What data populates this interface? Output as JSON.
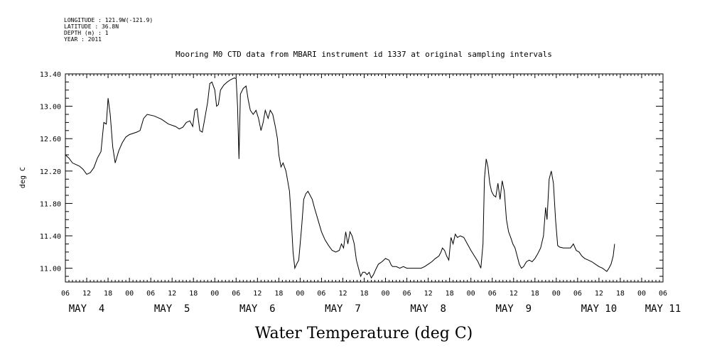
{
  "metadata": [
    "LONGITUDE : 121.9W(-121.9)",
    "LATITUDE : 36.8N",
    "DEPTH (m) : 1",
    "YEAR : 2011"
  ],
  "chart_data": {
    "type": "line",
    "title": "Mooring M0 CTD data from MBARI instrument id 1337 at original sampling intervals",
    "xlabel": "Water Temperature (deg C)",
    "ylabel": "deg C",
    "ylim": [
      10.83,
      13.4
    ],
    "xlim_hours": [
      0,
      168
    ],
    "x_start": "MAY 4 06:00",
    "x_unit": "hours since MAY 4 06:00",
    "yticks": [
      "11.00",
      "11.40",
      "11.80",
      "12.20",
      "12.60",
      "13.00",
      "13.40"
    ],
    "ytick_values": [
      11.0,
      11.4,
      11.8,
      12.2,
      12.6,
      13.0,
      13.4
    ],
    "xtick_labels": [
      "06",
      "12",
      "18",
      "00",
      "06",
      "12",
      "18",
      "00",
      "06",
      "12",
      "18",
      "00",
      "06",
      "12",
      "18",
      "00",
      "06",
      "12",
      "18",
      "00",
      "06",
      "12",
      "18",
      "00",
      "06",
      "12",
      "18",
      "00",
      "06"
    ],
    "day_labels": [
      {
        "label": "MAY  4",
        "hour": 6
      },
      {
        "label": "MAY  5",
        "hour": 30
      },
      {
        "label": "MAY  6",
        "hour": 54
      },
      {
        "label": "MAY  7",
        "hour": 78
      },
      {
        "label": "MAY  8",
        "hour": 102
      },
      {
        "label": "MAY  9",
        "hour": 126
      },
      {
        "label": "MAY 10",
        "hour": 150
      },
      {
        "label": "MAY 11",
        "hour": 168
      }
    ],
    "series": [
      {
        "name": "Water Temperature",
        "points": [
          [
            0,
            12.4
          ],
          [
            1,
            12.36
          ],
          [
            2,
            12.3
          ],
          [
            3,
            12.28
          ],
          [
            4,
            12.26
          ],
          [
            5,
            12.22
          ],
          [
            6,
            12.16
          ],
          [
            7,
            12.18
          ],
          [
            8,
            12.24
          ],
          [
            9,
            12.36
          ],
          [
            10,
            12.44
          ],
          [
            10.8,
            12.8
          ],
          [
            11.5,
            12.78
          ],
          [
            12,
            13.1
          ],
          [
            12.6,
            12.9
          ],
          [
            13.3,
            12.5
          ],
          [
            14,
            12.3
          ],
          [
            15,
            12.45
          ],
          [
            16,
            12.55
          ],
          [
            17,
            12.62
          ],
          [
            18,
            12.65
          ],
          [
            20,
            12.68
          ],
          [
            21,
            12.7
          ],
          [
            22,
            12.85
          ],
          [
            23,
            12.9
          ],
          [
            25,
            12.88
          ],
          [
            27,
            12.84
          ],
          [
            29,
            12.78
          ],
          [
            31,
            12.75
          ],
          [
            32,
            12.72
          ],
          [
            33,
            12.74
          ],
          [
            34,
            12.8
          ],
          [
            35,
            12.82
          ],
          [
            35.8,
            12.75
          ],
          [
            36.4,
            12.95
          ],
          [
            37,
            12.97
          ],
          [
            37.8,
            12.7
          ],
          [
            38.5,
            12.68
          ],
          [
            39,
            12.8
          ],
          [
            40,
            13.05
          ],
          [
            40.6,
            13.28
          ],
          [
            41.2,
            13.3
          ],
          [
            42,
            13.2
          ],
          [
            42.5,
            13.0
          ],
          [
            43,
            13.02
          ],
          [
            43.6,
            13.2
          ],
          [
            44.5,
            13.26
          ],
          [
            45.5,
            13.3
          ],
          [
            46.5,
            13.33
          ],
          [
            47.5,
            13.35
          ],
          [
            48,
            13.34
          ],
          [
            48.4,
            13.0
          ],
          [
            48.8,
            12.35
          ],
          [
            49.2,
            13.15
          ],
          [
            50,
            13.22
          ],
          [
            50.8,
            13.25
          ],
          [
            51.4,
            13.08
          ],
          [
            52,
            12.95
          ],
          [
            52.8,
            12.9
          ],
          [
            53.6,
            12.95
          ],
          [
            54.3,
            12.85
          ],
          [
            55,
            12.7
          ],
          [
            55.6,
            12.8
          ],
          [
            56.2,
            12.95
          ],
          [
            57,
            12.85
          ],
          [
            57.6,
            12.95
          ],
          [
            58.3,
            12.9
          ],
          [
            59,
            12.75
          ],
          [
            59.6,
            12.6
          ],
          [
            60,
            12.4
          ],
          [
            60.6,
            12.25
          ],
          [
            61.2,
            12.3
          ],
          [
            62,
            12.2
          ],
          [
            62.6,
            12.05
          ],
          [
            63,
            11.95
          ],
          [
            63.5,
            11.6
          ],
          [
            64,
            11.2
          ],
          [
            64.5,
            11.0
          ],
          [
            65,
            11.05
          ],
          [
            65.6,
            11.1
          ],
          [
            66.4,
            11.5
          ],
          [
            67,
            11.85
          ],
          [
            67.6,
            11.92
          ],
          [
            68.2,
            11.95
          ],
          [
            68.8,
            11.9
          ],
          [
            69.4,
            11.85
          ],
          [
            70,
            11.75
          ],
          [
            71,
            11.6
          ],
          [
            72,
            11.45
          ],
          [
            73,
            11.35
          ],
          [
            74,
            11.28
          ],
          [
            75,
            11.22
          ],
          [
            76,
            11.2
          ],
          [
            77,
            11.22
          ],
          [
            77.6,
            11.3
          ],
          [
            78.2,
            11.25
          ],
          [
            78.8,
            11.45
          ],
          [
            79.4,
            11.3
          ],
          [
            80,
            11.45
          ],
          [
            80.6,
            11.4
          ],
          [
            81.2,
            11.3
          ],
          [
            81.8,
            11.1
          ],
          [
            82.4,
            11.0
          ],
          [
            83,
            10.9
          ],
          [
            83.6,
            10.95
          ],
          [
            84.2,
            10.95
          ],
          [
            84.8,
            10.92
          ],
          [
            85.4,
            10.95
          ],
          [
            86,
            10.88
          ],
          [
            86.6,
            10.92
          ],
          [
            87.2,
            10.98
          ],
          [
            88,
            11.05
          ],
          [
            89,
            11.08
          ],
          [
            90,
            11.12
          ],
          [
            91,
            11.1
          ],
          [
            91.6,
            11.04
          ],
          [
            92,
            11.02
          ],
          [
            93,
            11.02
          ],
          [
            94,
            11.0
          ],
          [
            95,
            11.02
          ],
          [
            96,
            11.0
          ],
          [
            98,
            11.0
          ],
          [
            100,
            11.0
          ],
          [
            101,
            11.02
          ],
          [
            102,
            11.05
          ],
          [
            103,
            11.08
          ],
          [
            104,
            11.12
          ],
          [
            105,
            11.15
          ],
          [
            105.6,
            11.2
          ],
          [
            106,
            11.25
          ],
          [
            106.6,
            11.22
          ],
          [
            107.2,
            11.15
          ],
          [
            107.8,
            11.1
          ],
          [
            108.4,
            11.38
          ],
          [
            109,
            11.3
          ],
          [
            109.6,
            11.42
          ],
          [
            110.2,
            11.38
          ],
          [
            111,
            11.4
          ],
          [
            112,
            11.38
          ],
          [
            113,
            11.3
          ],
          [
            114,
            11.22
          ],
          [
            115,
            11.15
          ],
          [
            116,
            11.08
          ],
          [
            116.8,
            11.0
          ],
          [
            117.4,
            11.3
          ],
          [
            117.8,
            12.1
          ],
          [
            118.3,
            12.35
          ],
          [
            118.8,
            12.25
          ],
          [
            119.3,
            12.05
          ],
          [
            119.8,
            11.95
          ],
          [
            120.4,
            11.9
          ],
          [
            121,
            11.88
          ],
          [
            121.6,
            12.05
          ],
          [
            122.2,
            11.85
          ],
          [
            122.8,
            12.08
          ],
          [
            123.4,
            11.95
          ],
          [
            124,
            11.6
          ],
          [
            124.6,
            11.45
          ],
          [
            125.2,
            11.38
          ],
          [
            125.8,
            11.3
          ],
          [
            126.4,
            11.25
          ],
          [
            127,
            11.15
          ],
          [
            127.6,
            11.05
          ],
          [
            128.2,
            11.0
          ],
          [
            128.8,
            11.02
          ],
          [
            129.6,
            11.08
          ],
          [
            130.4,
            11.1
          ],
          [
            131.2,
            11.08
          ],
          [
            132,
            11.12
          ],
          [
            132.8,
            11.18
          ],
          [
            133.6,
            11.25
          ],
          [
            134.4,
            11.4
          ],
          [
            135,
            11.75
          ],
          [
            135.4,
            11.6
          ],
          [
            136,
            12.1
          ],
          [
            136.6,
            12.2
          ],
          [
            137.2,
            12.05
          ],
          [
            137.8,
            11.6
          ],
          [
            138.4,
            11.28
          ],
          [
            139,
            11.26
          ],
          [
            140,
            11.25
          ],
          [
            141,
            11.25
          ],
          [
            142,
            11.25
          ],
          [
            142.8,
            11.3
          ],
          [
            143.6,
            11.22
          ],
          [
            144.4,
            11.2
          ],
          [
            145.2,
            11.15
          ],
          [
            146,
            11.12
          ],
          [
            147,
            11.1
          ],
          [
            148,
            11.08
          ],
          [
            149,
            11.05
          ],
          [
            150,
            11.02
          ],
          [
            151,
            11.0
          ],
          [
            151.6,
            10.98
          ],
          [
            152.2,
            10.96
          ],
          [
            152.8,
            11.0
          ],
          [
            153.4,
            11.05
          ],
          [
            154,
            11.15
          ],
          [
            154.4,
            11.3
          ]
        ]
      }
    ]
  }
}
